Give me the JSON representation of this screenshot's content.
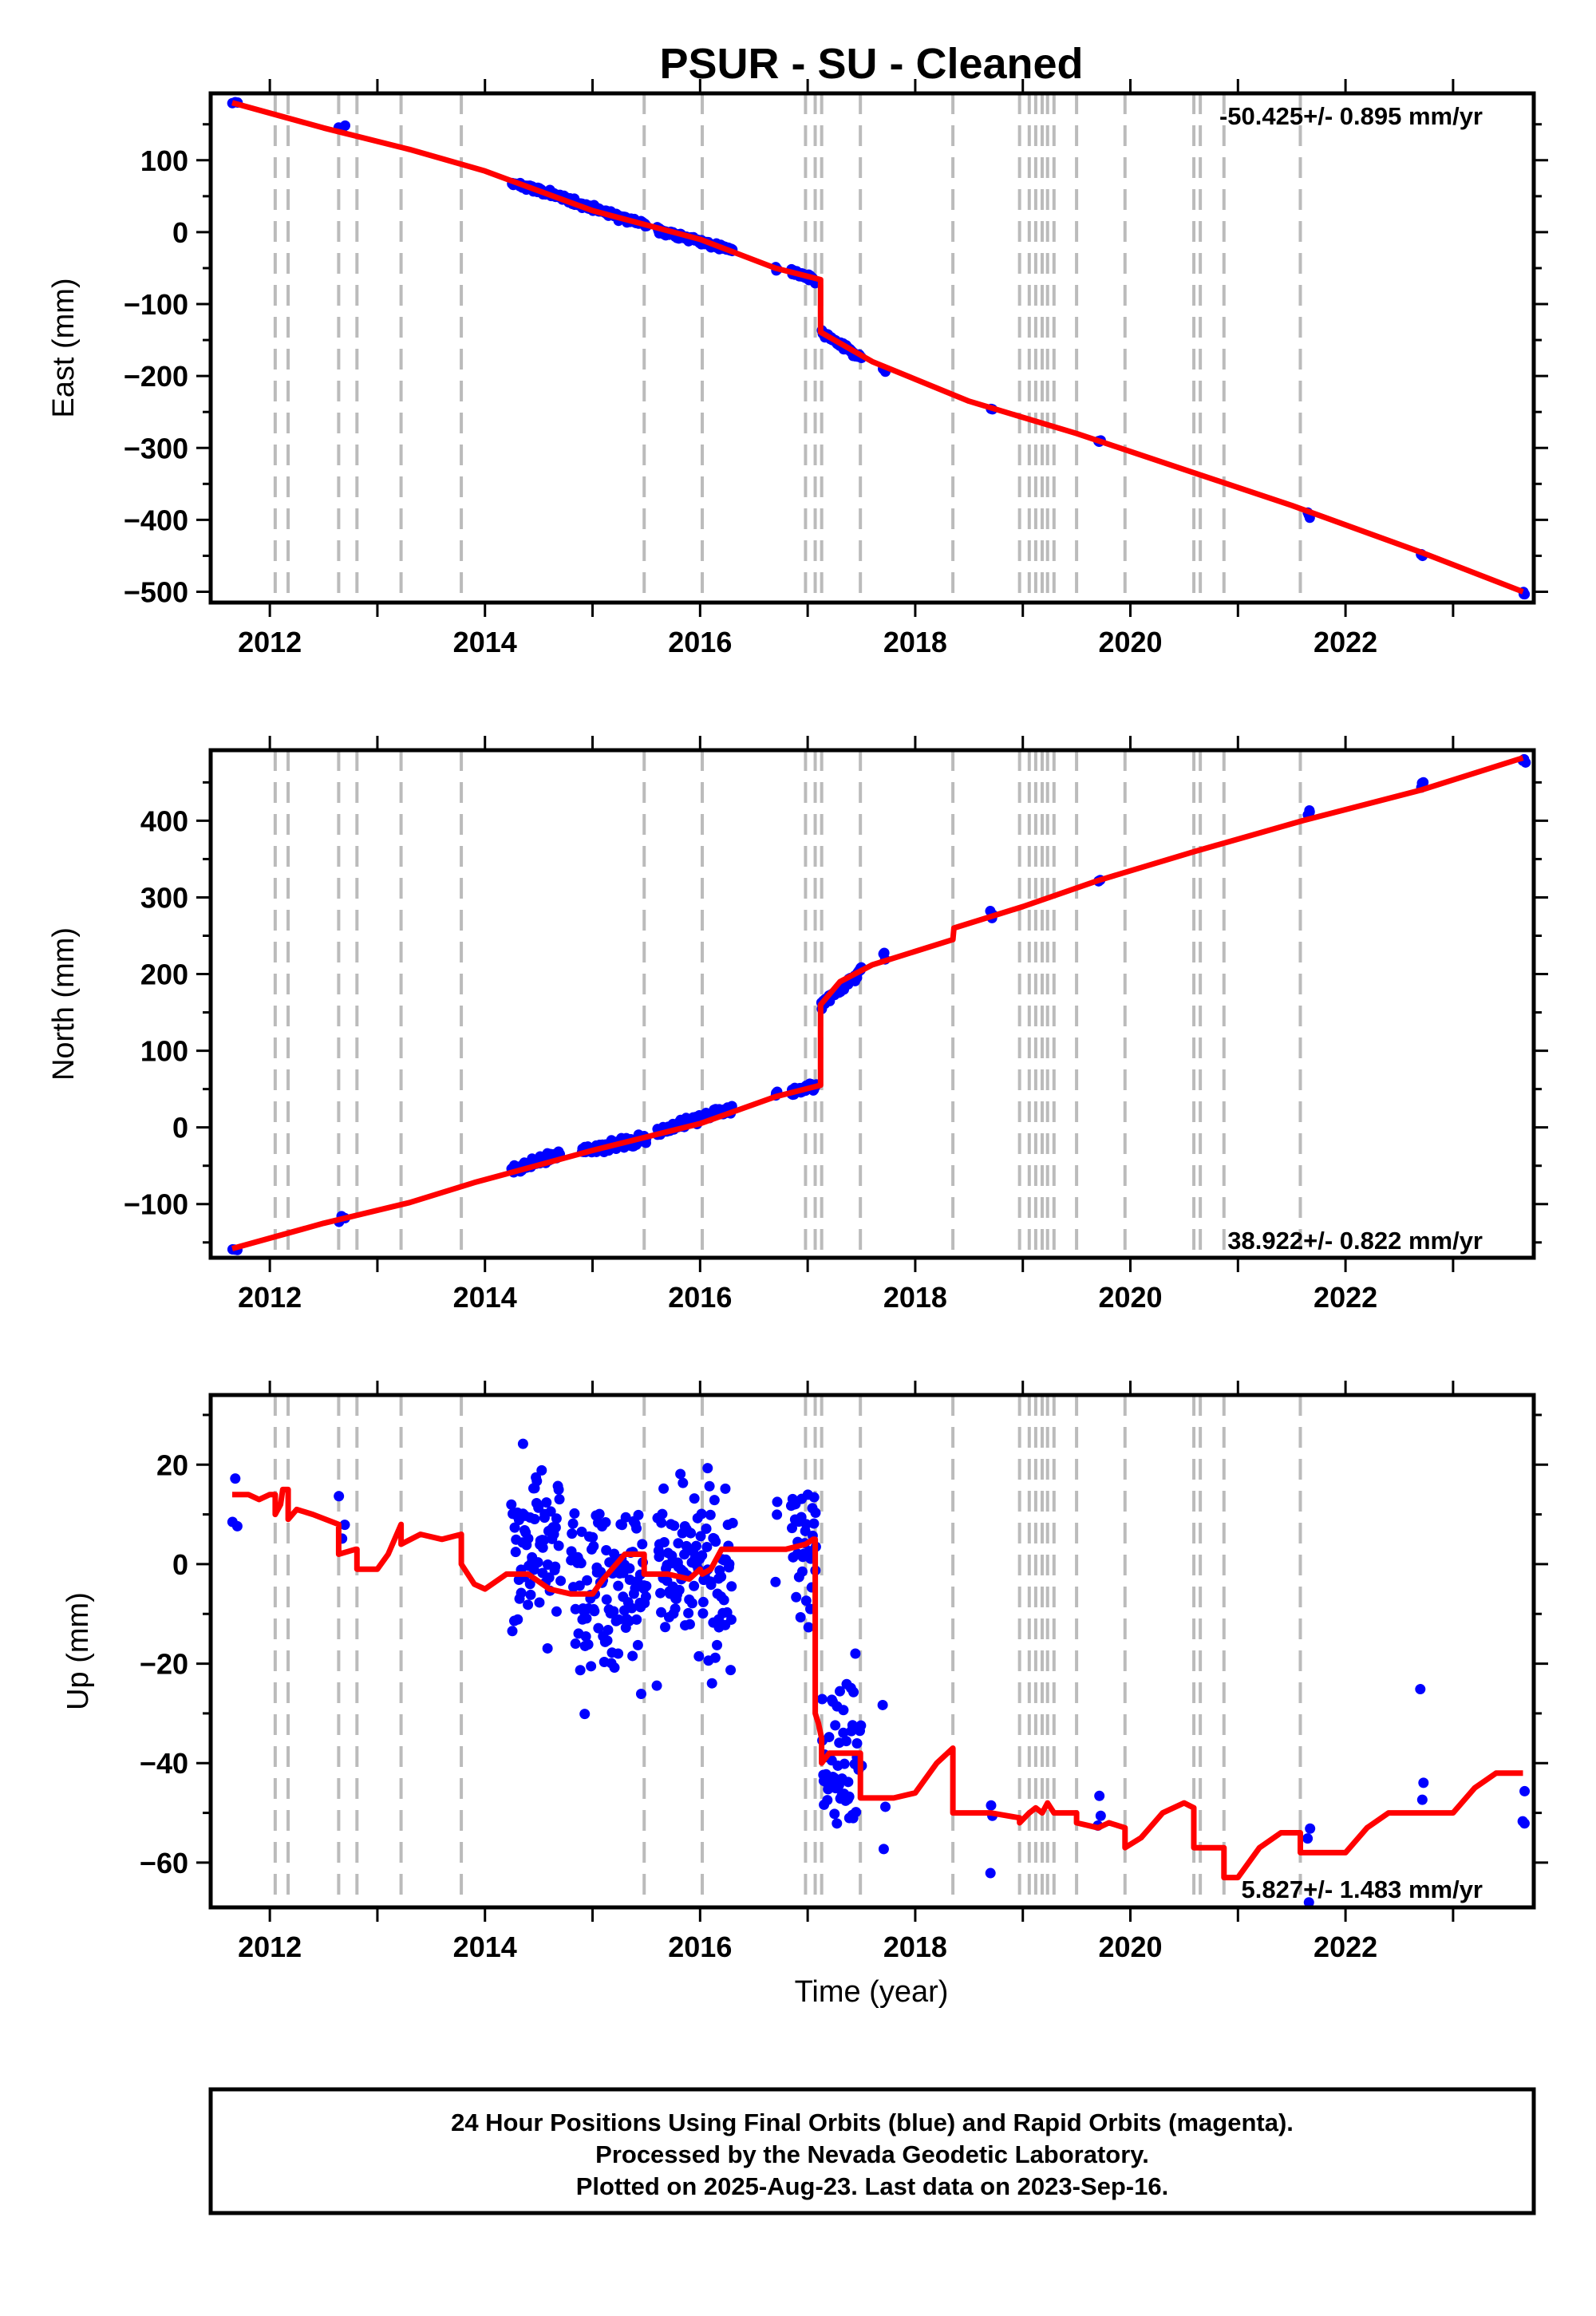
{
  "title": "PSUR  - SU - Cleaned",
  "footer": {
    "line1": "24 Hour Positions Using Final Orbits (blue) and Rapid Orbits (magenta).",
    "line2": "Processed by the Nevada Geodetic Laboratory.",
    "line3": "Plotted on 2025-Aug-23. Last data on 2023-Sep-16."
  },
  "colors": {
    "data_points": "#0000ff",
    "model_line": "#ff0000",
    "event_lines": "#bbbbbb",
    "frame": "#000000"
  },
  "chart_data": [
    {
      "type": "scatter",
      "name": "east",
      "ylabel": "East (mm)",
      "xlabel": "",
      "rate_label": "-50.425+/- 0.895 mm/yr",
      "xlim": [
        2011.45,
        2023.75
      ],
      "ylim": [
        -515,
        193
      ],
      "x_ticks": [
        2012,
        2014,
        2016,
        2018,
        2020,
        2022
      ],
      "y_ticks": [
        -500,
        -400,
        -300,
        -200,
        -100,
        0,
        100
      ],
      "event_lines": [
        2012.05,
        2012.17,
        2012.64,
        2012.81,
        2013.22,
        2013.78,
        2015.48,
        2016.02,
        2016.98,
        2017.07,
        2017.13,
        2017.49,
        2018.35,
        2018.97,
        2019.06,
        2019.12,
        2019.18,
        2019.23,
        2019.29,
        2019.5,
        2019.95,
        2020.59,
        2020.65,
        2020.87,
        2021.58
      ],
      "model": {
        "step_year": 2017.12,
        "step_before": -66,
        "step_after": -139,
        "pre": [
          [
            2011.65,
            180
          ],
          [
            2012.5,
            145
          ],
          [
            2013.3,
            115
          ],
          [
            2014.0,
            85
          ],
          [
            2015.0,
            30
          ],
          [
            2016.0,
            -10
          ],
          [
            2016.7,
            -50
          ],
          [
            2017.12,
            -66
          ]
        ],
        "post": [
          [
            2017.12,
            -139
          ],
          [
            2017.6,
            -180
          ],
          [
            2018.5,
            -235
          ],
          [
            2019.5,
            -280
          ],
          [
            2020.5,
            -330
          ],
          [
            2021.5,
            -380
          ],
          [
            2022.7,
            -445
          ],
          [
            2023.65,
            -500
          ]
        ]
      },
      "points": {
        "clusters": [
          [
            2011.65,
            2011.7,
            178,
            180
          ],
          [
            2012.64,
            2012.7,
            144,
            146
          ],
          [
            2014.25,
            2014.7,
            68,
            50
          ],
          [
            2014.7,
            2015.5,
            48,
            10
          ],
          [
            2015.6,
            2016.3,
            3,
            -25
          ],
          [
            2016.7,
            2016.72,
            -50,
            -50
          ],
          [
            2016.85,
            2017.08,
            -55,
            -68
          ],
          [
            2017.13,
            2017.5,
            -140,
            -175
          ],
          [
            2017.7,
            2017.72,
            -190,
            -190
          ],
          [
            2018.7,
            2018.72,
            -245,
            -245
          ],
          [
            2019.7,
            2019.72,
            -292,
            -292
          ],
          [
            2021.65,
            2021.67,
            -393,
            -393
          ],
          [
            2022.7,
            2022.72,
            -450,
            -450
          ],
          [
            2023.65,
            2023.67,
            -503,
            -503
          ]
        ],
        "scatter_mm": 3
      }
    },
    {
      "type": "scatter",
      "name": "north",
      "ylabel": "North (mm)",
      "xlabel": "",
      "rate_label": "38.922+/- 0.822 mm/yr",
      "xlim": [
        2011.45,
        2023.75
      ],
      "ylim": [
        -170,
        492
      ],
      "x_ticks": [
        2012,
        2014,
        2016,
        2018,
        2020,
        2022
      ],
      "y_ticks": [
        -100,
        0,
        100,
        200,
        300,
        400
      ],
      "event_lines": [
        2012.05,
        2012.17,
        2012.64,
        2012.81,
        2013.22,
        2013.78,
        2015.48,
        2016.02,
        2016.98,
        2017.07,
        2017.13,
        2017.49,
        2018.35,
        2018.97,
        2019.06,
        2019.12,
        2019.18,
        2019.23,
        2019.29,
        2019.5,
        2019.95,
        2020.59,
        2020.65,
        2020.87,
        2021.58
      ],
      "model": {
        "step_year": 2017.12,
        "step_before": 55,
        "step_after": 160,
        "pre": [
          [
            2011.65,
            -158
          ],
          [
            2012.5,
            -125
          ],
          [
            2013.3,
            -98
          ],
          [
            2013.9,
            -72
          ],
          [
            2015.0,
            -30
          ],
          [
            2016.0,
            5
          ],
          [
            2016.7,
            40
          ],
          [
            2017.12,
            55
          ]
        ],
        "post": [
          [
            2017.12,
            160
          ],
          [
            2017.3,
            190
          ],
          [
            2017.6,
            212
          ],
          [
            2018.35,
            245
          ],
          [
            2018.36,
            260
          ],
          [
            2019.0,
            288
          ],
          [
            2019.7,
            322
          ],
          [
            2020.6,
            360
          ],
          [
            2021.6,
            400
          ],
          [
            2022.7,
            440
          ],
          [
            2023.65,
            482
          ]
        ]
      },
      "points": {
        "clusters": [
          [
            2011.65,
            2011.7,
            -157,
            -157
          ],
          [
            2012.64,
            2012.7,
            -117,
            -117
          ],
          [
            2014.25,
            2014.7,
            -55,
            -35
          ],
          [
            2014.9,
            2015.5,
            -30,
            -15
          ],
          [
            2015.6,
            2016.3,
            -5,
            25
          ],
          [
            2016.7,
            2016.72,
            45,
            45
          ],
          [
            2016.85,
            2017.08,
            45,
            55
          ],
          [
            2017.13,
            2017.5,
            160,
            205
          ],
          [
            2017.7,
            2017.72,
            225,
            225
          ],
          [
            2018.7,
            2018.72,
            277,
            277
          ],
          [
            2019.7,
            2019.72,
            320,
            320
          ],
          [
            2021.65,
            2021.67,
            410,
            410
          ],
          [
            2022.7,
            2022.72,
            445,
            445
          ],
          [
            2023.65,
            2023.67,
            480,
            480
          ]
        ],
        "scatter_mm": 4
      }
    },
    {
      "type": "scatter",
      "name": "up",
      "ylabel": "Up (mm)",
      "xlabel": "Time (year)",
      "rate_label": "5.827+/- 1.483 mm/yr",
      "xlim": [
        2011.45,
        2023.75
      ],
      "ylim": [
        -69,
        34
      ],
      "x_ticks": [
        2012,
        2014,
        2016,
        2018,
        2020,
        2022
      ],
      "y_ticks": [
        -60,
        -40,
        -20,
        0,
        20
      ],
      "event_lines": [
        2012.05,
        2012.17,
        2012.64,
        2012.81,
        2013.22,
        2013.78,
        2015.48,
        2016.02,
        2016.98,
        2017.07,
        2017.13,
        2017.49,
        2018.35,
        2018.97,
        2019.06,
        2019.12,
        2019.18,
        2019.23,
        2019.29,
        2019.5,
        2019.95,
        2020.59,
        2020.65,
        2020.87,
        2021.58
      ],
      "model": {
        "line": [
          [
            2011.65,
            14
          ],
          [
            2011.8,
            14
          ],
          [
            2011.9,
            13
          ],
          [
            2012.0,
            14
          ],
          [
            2012.05,
            14
          ],
          [
            2012.05,
            10
          ],
          [
            2012.1,
            12
          ],
          [
            2012.12,
            15
          ],
          [
            2012.17,
            15
          ],
          [
            2012.17,
            9
          ],
          [
            2012.25,
            11
          ],
          [
            2012.4,
            10
          ],
          [
            2012.64,
            8
          ],
          [
            2012.64,
            2
          ],
          [
            2012.8,
            3
          ],
          [
            2012.81,
            3
          ],
          [
            2012.81,
            -1
          ],
          [
            2013.0,
            -1
          ],
          [
            2013.1,
            2
          ],
          [
            2013.22,
            8
          ],
          [
            2013.22,
            4
          ],
          [
            2013.4,
            6
          ],
          [
            2013.6,
            5
          ],
          [
            2013.78,
            6
          ],
          [
            2013.78,
            0
          ],
          [
            2013.9,
            -4
          ],
          [
            2014.0,
            -5
          ],
          [
            2014.2,
            -2
          ],
          [
            2014.4,
            -2
          ],
          [
            2014.6,
            -5
          ],
          [
            2014.8,
            -6
          ],
          [
            2015.0,
            -6
          ],
          [
            2015.1,
            -3
          ],
          [
            2015.3,
            2
          ],
          [
            2015.48,
            2
          ],
          [
            2015.48,
            -2
          ],
          [
            2015.7,
            -2
          ],
          [
            2015.9,
            -3
          ],
          [
            2016.0,
            -1
          ],
          [
            2016.02,
            -2
          ],
          [
            2016.1,
            -1
          ],
          [
            2016.2,
            3
          ],
          [
            2016.5,
            3
          ],
          [
            2016.8,
            3
          ],
          [
            2016.98,
            4
          ],
          [
            2017.05,
            5
          ],
          [
            2017.07,
            5
          ],
          [
            2017.07,
            -30
          ],
          [
            2017.1,
            -32
          ],
          [
            2017.13,
            -35
          ],
          [
            2017.13,
            -40
          ],
          [
            2017.2,
            -38
          ],
          [
            2017.3,
            -38
          ],
          [
            2017.49,
            -38
          ],
          [
            2017.49,
            -47
          ],
          [
            2017.8,
            -47
          ],
          [
            2018.0,
            -46
          ],
          [
            2018.2,
            -40
          ],
          [
            2018.35,
            -37
          ],
          [
            2018.35,
            -50
          ],
          [
            2018.7,
            -50
          ],
          [
            2018.97,
            -51
          ],
          [
            2018.97,
            -52
          ],
          [
            2019.06,
            -50
          ],
          [
            2019.12,
            -49
          ],
          [
            2019.18,
            -50
          ],
          [
            2019.23,
            -48
          ],
          [
            2019.29,
            -50
          ],
          [
            2019.5,
            -50
          ],
          [
            2019.5,
            -52
          ],
          [
            2019.7,
            -53
          ],
          [
            2019.8,
            -52
          ],
          [
            2019.95,
            -53
          ],
          [
            2019.95,
            -57
          ],
          [
            2020.1,
            -55
          ],
          [
            2020.3,
            -50
          ],
          [
            2020.5,
            -48
          ],
          [
            2020.59,
            -49
          ],
          [
            2020.59,
            -57
          ],
          [
            2020.8,
            -57
          ],
          [
            2020.87,
            -57
          ],
          [
            2020.87,
            -63
          ],
          [
            2021.0,
            -63
          ],
          [
            2021.2,
            -57
          ],
          [
            2021.4,
            -54
          ],
          [
            2021.58,
            -54
          ],
          [
            2021.58,
            -58
          ],
          [
            2021.8,
            -58
          ],
          [
            2022.0,
            -58
          ],
          [
            2022.2,
            -53
          ],
          [
            2022.4,
            -50
          ],
          [
            2022.6,
            -50
          ],
          [
            2022.8,
            -50
          ],
          [
            2023.0,
            -50
          ],
          [
            2023.2,
            -45
          ],
          [
            2023.4,
            -42
          ],
          [
            2023.65,
            -42
          ]
        ]
      },
      "points": {
        "clusters": [
          [
            2011.65,
            2011.7,
            14,
            14
          ],
          [
            2012.64,
            2012.7,
            3,
            3
          ],
          [
            2014.25,
            2014.7,
            5,
            5
          ],
          [
            2014.8,
            2015.5,
            -3,
            -3
          ],
          [
            2015.6,
            2016.3,
            -2,
            -2
          ],
          [
            2016.7,
            2016.72,
            0,
            0
          ],
          [
            2016.85,
            2017.08,
            3,
            3
          ],
          [
            2017.13,
            2017.5,
            -38,
            -38
          ],
          [
            2017.7,
            2017.72,
            -47,
            -47
          ],
          [
            2018.7,
            2018.72,
            -51,
            -51
          ],
          [
            2019.7,
            2019.72,
            -51,
            -51
          ],
          [
            2021.65,
            2021.67,
            -60,
            -60
          ],
          [
            2022.7,
            2022.72,
            -44,
            -44
          ],
          [
            2023.65,
            2023.67,
            -46,
            -46
          ]
        ],
        "scatter_mm": 12
      }
    }
  ]
}
